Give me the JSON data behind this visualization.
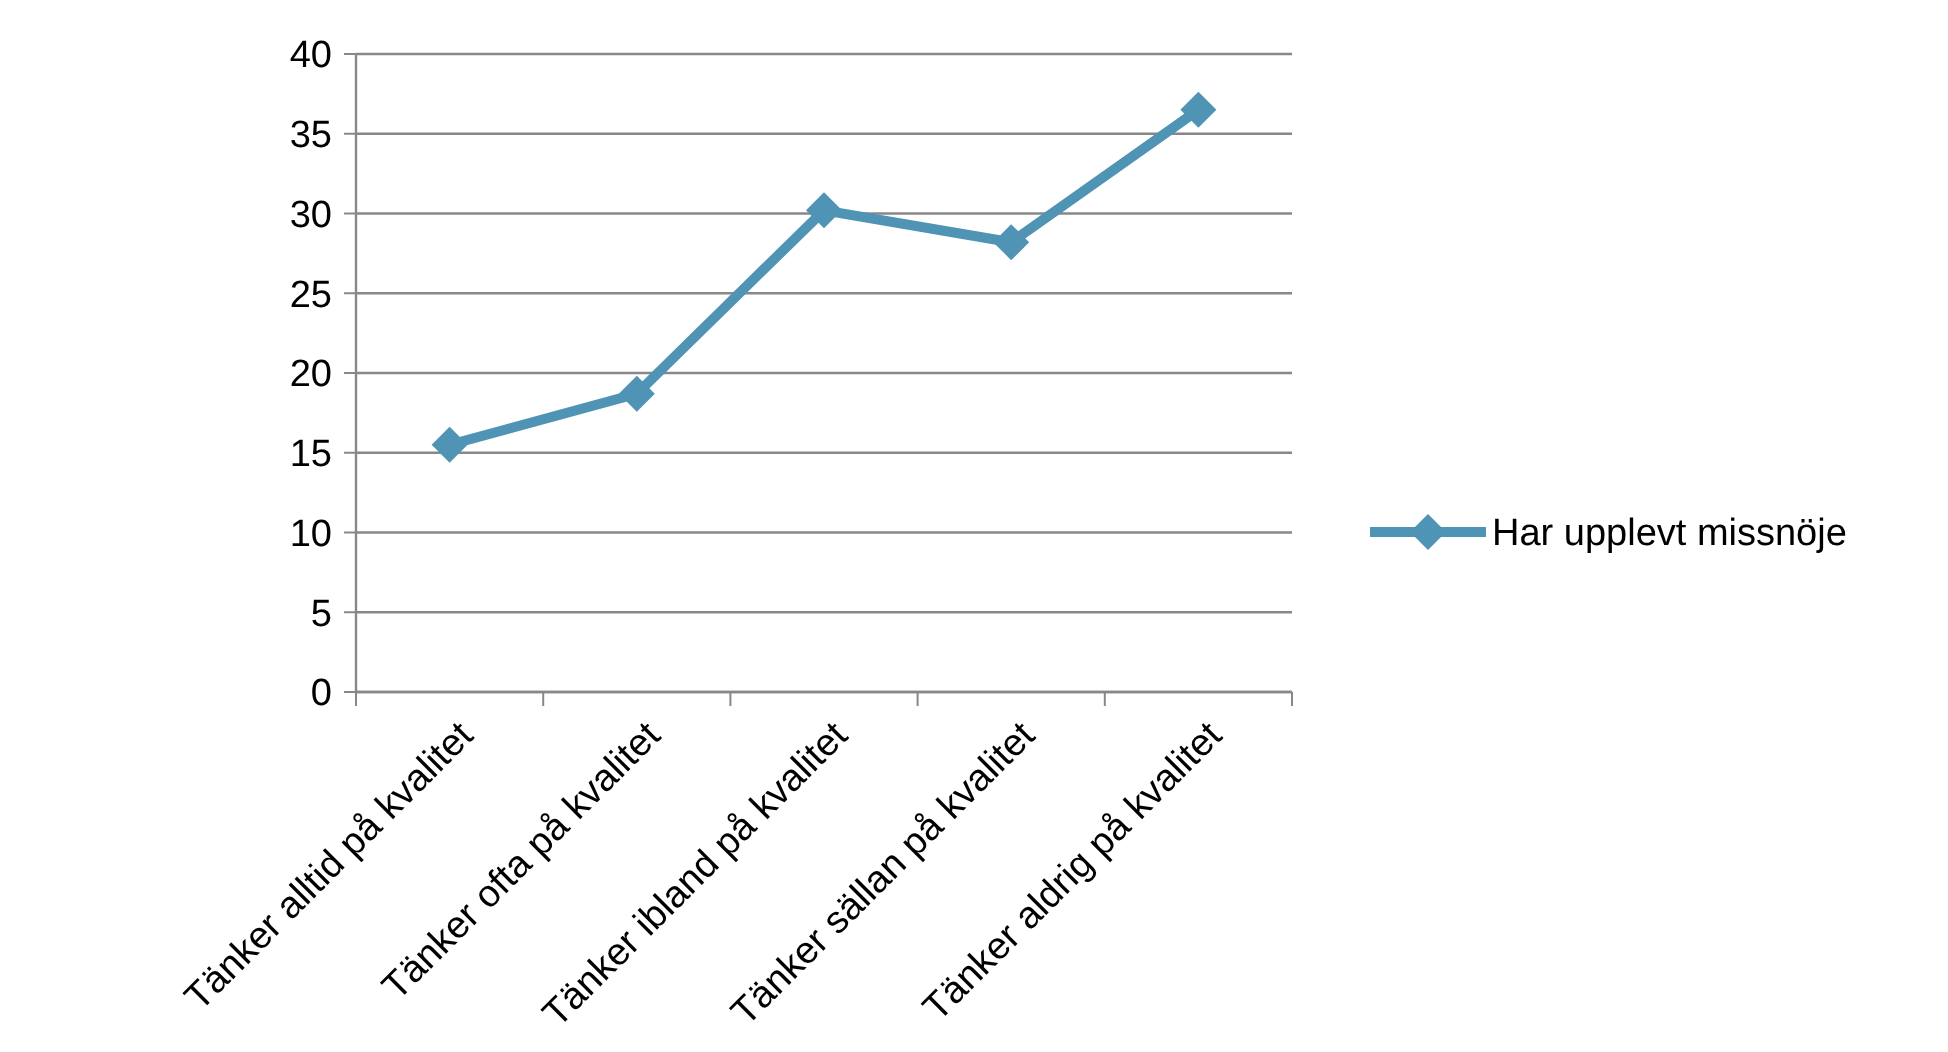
{
  "chart_data": {
    "type": "line",
    "categories": [
      "Tänker alltid på kvalitet",
      "Tänker ofta på kvalitet",
      "Tänker ibland på kvalitet",
      "Tänker sällan på kvalitet",
      "Tänker aldrig på kvalitet"
    ],
    "series": [
      {
        "name": "Har upplevt missnöje",
        "color": "#4f94b4",
        "values": [
          15.5,
          18.7,
          30.2,
          28.2,
          36.5
        ]
      }
    ],
    "ylim": [
      0,
      40
    ],
    "yticks": [
      0,
      5,
      10,
      15,
      20,
      25,
      30,
      35,
      40
    ],
    "grid": "y",
    "legend": "right",
    "marker": "diamond",
    "line_style": "solid"
  }
}
